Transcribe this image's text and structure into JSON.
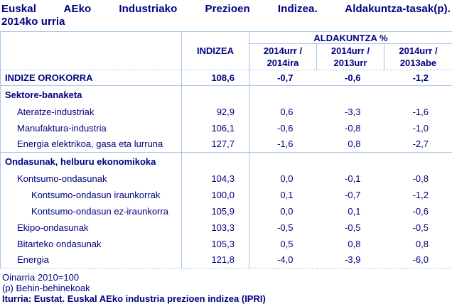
{
  "colors": {
    "text": "#000082",
    "border": "#a3c6e8"
  },
  "title": {
    "line1": "Euskal AEko Industriako Prezioen Indizea. Aldakuntza-tasak(p).",
    "line2": "2014ko urria"
  },
  "table": {
    "index_col_header": "INDIZEA",
    "change_group_header": "ALDAKUNTZA %",
    "change_cols": [
      {
        "top": "2014urr /",
        "bottom": "2014ira"
      },
      {
        "top": "2014urr /",
        "bottom": "2013urr"
      },
      {
        "top": "2014urr /",
        "bottom": "2013abe"
      }
    ],
    "rows": [
      {
        "label": "INDIZE OROKORRA",
        "indizea": "108,6",
        "values": [
          "-0,7",
          "-0,6",
          "-1,2"
        ]
      },
      {
        "label": "Sektore-banaketa"
      },
      {
        "label": "Ateratze-industriak",
        "indizea": "92,9",
        "values": [
          "0,6",
          "-3,3",
          "-1,6"
        ]
      },
      {
        "label": "Manufaktura-industria",
        "indizea": "106,1",
        "values": [
          "-0,6",
          "-0,8",
          "-1,0"
        ]
      },
      {
        "label": "Energia elektrikoa, gasa eta lurruna",
        "indizea": "127,7",
        "values": [
          "-1,6",
          "0,8",
          "-2,7"
        ]
      },
      {
        "label": "Ondasunak, helburu ekonomikoka"
      },
      {
        "label": "Kontsumo-ondasunak",
        "indizea": "104,3",
        "values": [
          "0,0",
          "-0,1",
          "-0,8"
        ]
      },
      {
        "label": "Kontsumo-ondasun iraunkorrak",
        "indizea": "100,0",
        "values": [
          "0,1",
          "-0,7",
          "-1,2"
        ]
      },
      {
        "label": "Kontsumo-ondasun ez-iraunkorra",
        "indizea": "105,9",
        "values": [
          "0,0",
          "0,1",
          "-0,6"
        ]
      },
      {
        "label": "Ekipo-ondasunak",
        "indizea": "103,3",
        "values": [
          "-0,5",
          "-0,5",
          "-0,5"
        ]
      },
      {
        "label": "Bitarteko ondasunak",
        "indizea": "105,3",
        "values": [
          "0,5",
          "0,8",
          "0,8"
        ]
      },
      {
        "label": "Energia",
        "indizea": "121,8",
        "values": [
          "-4,0",
          "-3,9",
          "-6,0"
        ]
      }
    ]
  },
  "footer": {
    "base_note": "Oinarria 2010=100",
    "provisional_note": "(p) Behin-behinekoak",
    "source_note": "Iturria: Eustat. Euskal AEko industria prezioen indizea (IPRI)"
  }
}
